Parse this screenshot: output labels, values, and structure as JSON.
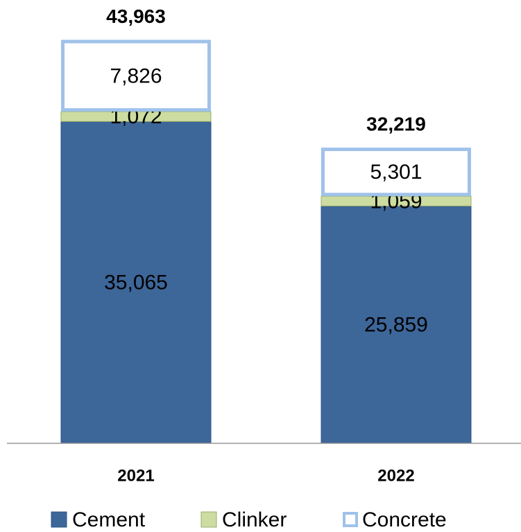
{
  "chart_data": {
    "type": "stacked_bar",
    "categories": [
      "2021",
      "2022"
    ],
    "series": [
      {
        "name": "Cement",
        "color": "#3d6699",
        "values": [
          35065,
          25859
        ],
        "value_labels": [
          "35,065",
          "25,859"
        ]
      },
      {
        "name": "Clinker",
        "color": "#cddca0",
        "values": [
          1072,
          1059
        ],
        "value_labels": [
          "1,072",
          "1,059"
        ]
      },
      {
        "name": "Concrete",
        "color": "#9fc2ea",
        "values": [
          7826,
          5301
        ],
        "value_labels": [
          "7,826",
          "5,301"
        ]
      }
    ],
    "totals": [
      43963,
      32219
    ],
    "total_labels": [
      "43,963",
      "32,219"
    ],
    "ylim": [
      0,
      48000
    ]
  }
}
